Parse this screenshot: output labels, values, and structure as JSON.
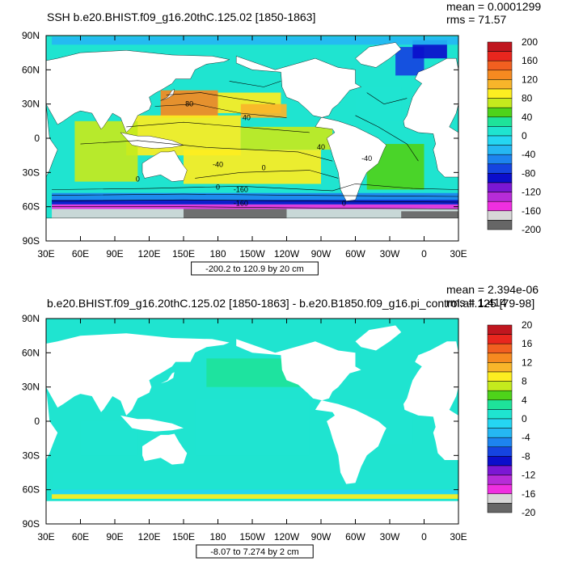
{
  "chart_data": [
    {
      "type": "heatmap",
      "title": "SSH b.e20.BHIST.f09_g16.20thC.125.02 [1850-1863]",
      "stats": {
        "mean": "mean = 0.0001299",
        "rms": "rms = 71.57"
      },
      "x_ticks": [
        "30E",
        "60E",
        "90E",
        "120E",
        "150E",
        "180",
        "150W",
        "120W",
        "90W",
        "60W",
        "30W",
        "0",
        "30E"
      ],
      "y_ticks": [
        "90N",
        "60N",
        "30N",
        "0",
        "30S",
        "60S",
        "90S"
      ],
      "xlim": [
        30,
        390
      ],
      "ylim": [
        -90,
        90
      ],
      "range_label": "-200.2 to 120.9 by 20 cm",
      "contour_labels": [
        "80",
        "40",
        "40",
        "0",
        "0",
        "0",
        "-40",
        "-40",
        "-160",
        "-160",
        "0"
      ],
      "colorbar": {
        "labels": [
          "200",
          "160",
          "120",
          "80",
          "40",
          "0",
          "-40",
          "-80",
          "-120",
          "-160",
          "-200"
        ],
        "colors": [
          "#c0161f",
          "#e8261e",
          "#f15f20",
          "#f68a20",
          "#f8b52a",
          "#fdee21",
          "#c4ea1d",
          "#4ed31a",
          "#1ee39a",
          "#1fe4d0",
          "#25d6f2",
          "#25b7f3",
          "#1d84ef",
          "#1544e0",
          "#0b0ecb",
          "#7b17d4",
          "#b72cd8",
          "#ef2fe0",
          "#d7d7d7",
          "#666666"
        ]
      },
      "fields": [
        {
          "lon": [
            130,
            180
          ],
          "lat": [
            18,
            42
          ],
          "cb": 3
        },
        {
          "lon": [
            180,
            235
          ],
          "lat": [
            22,
            40
          ],
          "cb": 5
        },
        {
          "lon": [
            200,
            240
          ],
          "lat": [
            18,
            30
          ],
          "cb": 4
        },
        {
          "lon": [
            100,
            200
          ],
          "lat": [
            -15,
            20
          ],
          "cb": 5
        },
        {
          "lon": [
            200,
            280
          ],
          "lat": [
            -10,
            10
          ],
          "cb": 6
        },
        {
          "lon": [
            150,
            270
          ],
          "lat": [
            -40,
            -10
          ],
          "cb": 5
        },
        {
          "lon": [
            55,
            110
          ],
          "lat": [
            -38,
            15
          ],
          "cb": 6
        },
        {
          "lon": [
            310,
            360
          ],
          "lat": [
            -45,
            -5
          ],
          "cb": 7
        },
        {
          "lon": [
            300,
            340
          ],
          "lat": [
            15,
            45
          ],
          "cb": 9
        },
        {
          "lon": [
            35,
            390
          ],
          "lat": [
            -54,
            -48
          ],
          "cb": 12
        },
        {
          "lon": [
            35,
            390
          ],
          "lat": [
            -58,
            -54
          ],
          "cb": 14
        },
        {
          "lon": [
            35,
            390
          ],
          "lat": [
            -62,
            -58
          ],
          "cb": 17
        },
        {
          "lon": [
            35,
            390
          ],
          "lat": [
            -70,
            -62
          ],
          "cb": 18
        },
        {
          "lon": [
            150,
            240
          ],
          "lat": [
            -74,
            -62
          ],
          "cb": 19
        },
        {
          "lon": [
            340,
            390
          ],
          "lat": [
            -74,
            -64
          ],
          "cb": 19
        },
        {
          "lon": [
            335,
            360
          ],
          "lat": [
            55,
            80
          ],
          "cb": 13
        },
        {
          "lon": [
            350,
            380
          ],
          "lat": [
            70,
            86
          ],
          "cb": 14
        },
        {
          "lon": [
            35,
            390
          ],
          "lat": [
            82,
            89
          ],
          "cb": 11
        }
      ]
    },
    {
      "type": "heatmap",
      "title": "b.e20.BHIST.f09_g16.20thC.125.02 [1850-1863] - b.e20.B1850.f09_g16.pi_control.all.125 [79-98]",
      "stats": {
        "mean": "mean = 2.394e-06",
        "rms": "rms = 1.414"
      },
      "x_ticks": [
        "30E",
        "60E",
        "90E",
        "120E",
        "150E",
        "180",
        "150W",
        "120W",
        "90W",
        "60W",
        "30W",
        "0",
        "30E"
      ],
      "y_ticks": [
        "90N",
        "60N",
        "30N",
        "0",
        "30S",
        "60S",
        "90S"
      ],
      "xlim": [
        30,
        390
      ],
      "ylim": [
        -90,
        90
      ],
      "range_label": "-8.07 to 7.274 by 2 cm",
      "colorbar": {
        "labels": [
          "20",
          "16",
          "12",
          "8",
          "4",
          "0",
          "-4",
          "-8",
          "-12",
          "-16",
          "-20"
        ],
        "colors": [
          "#c0161f",
          "#e8261e",
          "#f15f20",
          "#f68a20",
          "#f8b52a",
          "#fdee21",
          "#c4ea1d",
          "#4ed31a",
          "#1ee39a",
          "#1fe4d0",
          "#25d6f2",
          "#25b7f3",
          "#1d84ef",
          "#1544e0",
          "#0b0ecb",
          "#7b17d4",
          "#b72cd8",
          "#ef2fe0",
          "#d7d7d7",
          "#666666"
        ]
      },
      "fields": [
        {
          "lon": [
            160,
            260
          ],
          "lat": [
            -30,
            20
          ],
          "cb": 9
        },
        {
          "lon": [
            60,
            110
          ],
          "lat": [
            -30,
            0
          ],
          "cb": 9
        },
        {
          "lon": [
            300,
            350
          ],
          "lat": [
            -20,
            20
          ],
          "cb": 9
        },
        {
          "lon": [
            35,
            390
          ],
          "lat": [
            -60,
            -45
          ],
          "cb": 9
        },
        {
          "lon": [
            35,
            390
          ],
          "lat": [
            -64,
            -60
          ],
          "cb": 10
        },
        {
          "lon": [
            35,
            390
          ],
          "lat": [
            -68,
            -64
          ],
          "cb": 5
        },
        {
          "lon": [
            170,
            270
          ],
          "lat": [
            30,
            55
          ],
          "cb": 8
        }
      ]
    }
  ]
}
